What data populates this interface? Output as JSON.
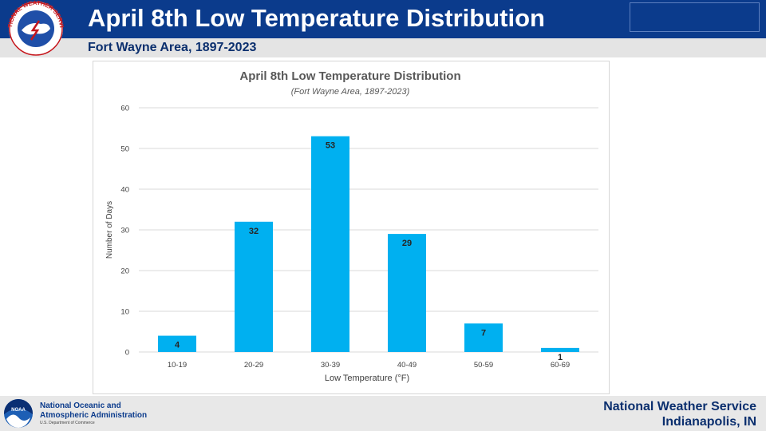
{
  "header": {
    "title": "April 8th Low Temperature Distribution",
    "subtitle": "Fort Wayne Area, 1897-2023",
    "logo_text": "NATIONAL WEATHER SERVICE"
  },
  "footer": {
    "agency_line1": "National Oceanic and",
    "agency_line2": "Atmospheric Administration",
    "department": "U.S. Department of Commerce",
    "noaa_logo_text": "NOAA",
    "office_line1": "National Weather Service",
    "office_line2": "Indianapolis, IN"
  },
  "colors": {
    "header_bg": "#0b3b8c",
    "bar": "#00b0f0",
    "gridline": "#d9d9d9"
  },
  "chart_data": {
    "type": "bar",
    "title": "April 8th Low Temperature Distribution",
    "subtitle": "(Fort Wayne Area, 1897-2023)",
    "xlabel": "Low Temperature (°F)",
    "ylabel": "Number of Days",
    "categories": [
      "10-19",
      "20-29",
      "30-39",
      "40-49",
      "50-59",
      "60-69"
    ],
    "values": [
      4,
      32,
      53,
      29,
      7,
      1
    ],
    "ylim": [
      0,
      60
    ],
    "yticks": [
      0,
      10,
      20,
      30,
      40,
      50,
      60
    ],
    "grid": true,
    "data_labels": true
  }
}
